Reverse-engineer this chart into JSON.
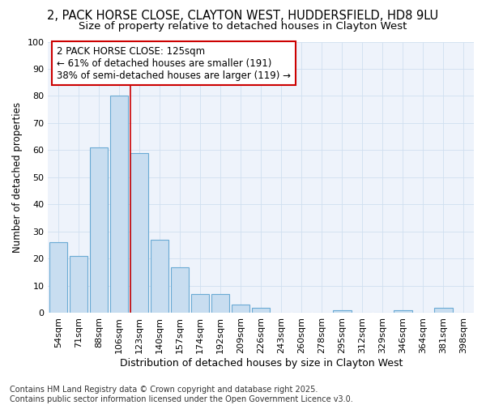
{
  "title": "2, PACK HORSE CLOSE, CLAYTON WEST, HUDDERSFIELD, HD8 9LU",
  "subtitle": "Size of property relative to detached houses in Clayton West",
  "xlabel": "Distribution of detached houses by size in Clayton West",
  "ylabel": "Number of detached properties",
  "categories": [
    "54sqm",
    "71sqm",
    "88sqm",
    "106sqm",
    "123sqm",
    "140sqm",
    "157sqm",
    "174sqm",
    "192sqm",
    "209sqm",
    "226sqm",
    "243sqm",
    "260sqm",
    "278sqm",
    "295sqm",
    "312sqm",
    "329sqm",
    "346sqm",
    "364sqm",
    "381sqm",
    "398sqm"
  ],
  "values": [
    26,
    21,
    61,
    80,
    59,
    27,
    17,
    7,
    7,
    3,
    2,
    0,
    0,
    0,
    1,
    0,
    0,
    1,
    0,
    2,
    0
  ],
  "bar_color": "#c8ddf0",
  "bar_edge_color": "#6aaad4",
  "grid_color": "#d0dff0",
  "background_color": "#ffffff",
  "plot_bg_color": "#eef3fb",
  "annotation_line1": "2 PACK HORSE CLOSE: 125sqm",
  "annotation_line2": "← 61% of detached houses are smaller (191)",
  "annotation_line3": "38% of semi-detached houses are larger (119) →",
  "annotation_box_color": "#ffffff",
  "annotation_box_edge": "#cc0000",
  "vline_color": "#cc0000",
  "vline_x_index": 4,
  "ylim": [
    0,
    100
  ],
  "yticks": [
    0,
    10,
    20,
    30,
    40,
    50,
    60,
    70,
    80,
    90,
    100
  ],
  "footnote": "Contains HM Land Registry data © Crown copyright and database right 2025.\nContains public sector information licensed under the Open Government Licence v3.0.",
  "title_fontsize": 10.5,
  "subtitle_fontsize": 9.5,
  "xlabel_fontsize": 9,
  "ylabel_fontsize": 8.5,
  "tick_fontsize": 8,
  "annotation_fontsize": 8.5,
  "footnote_fontsize": 7
}
